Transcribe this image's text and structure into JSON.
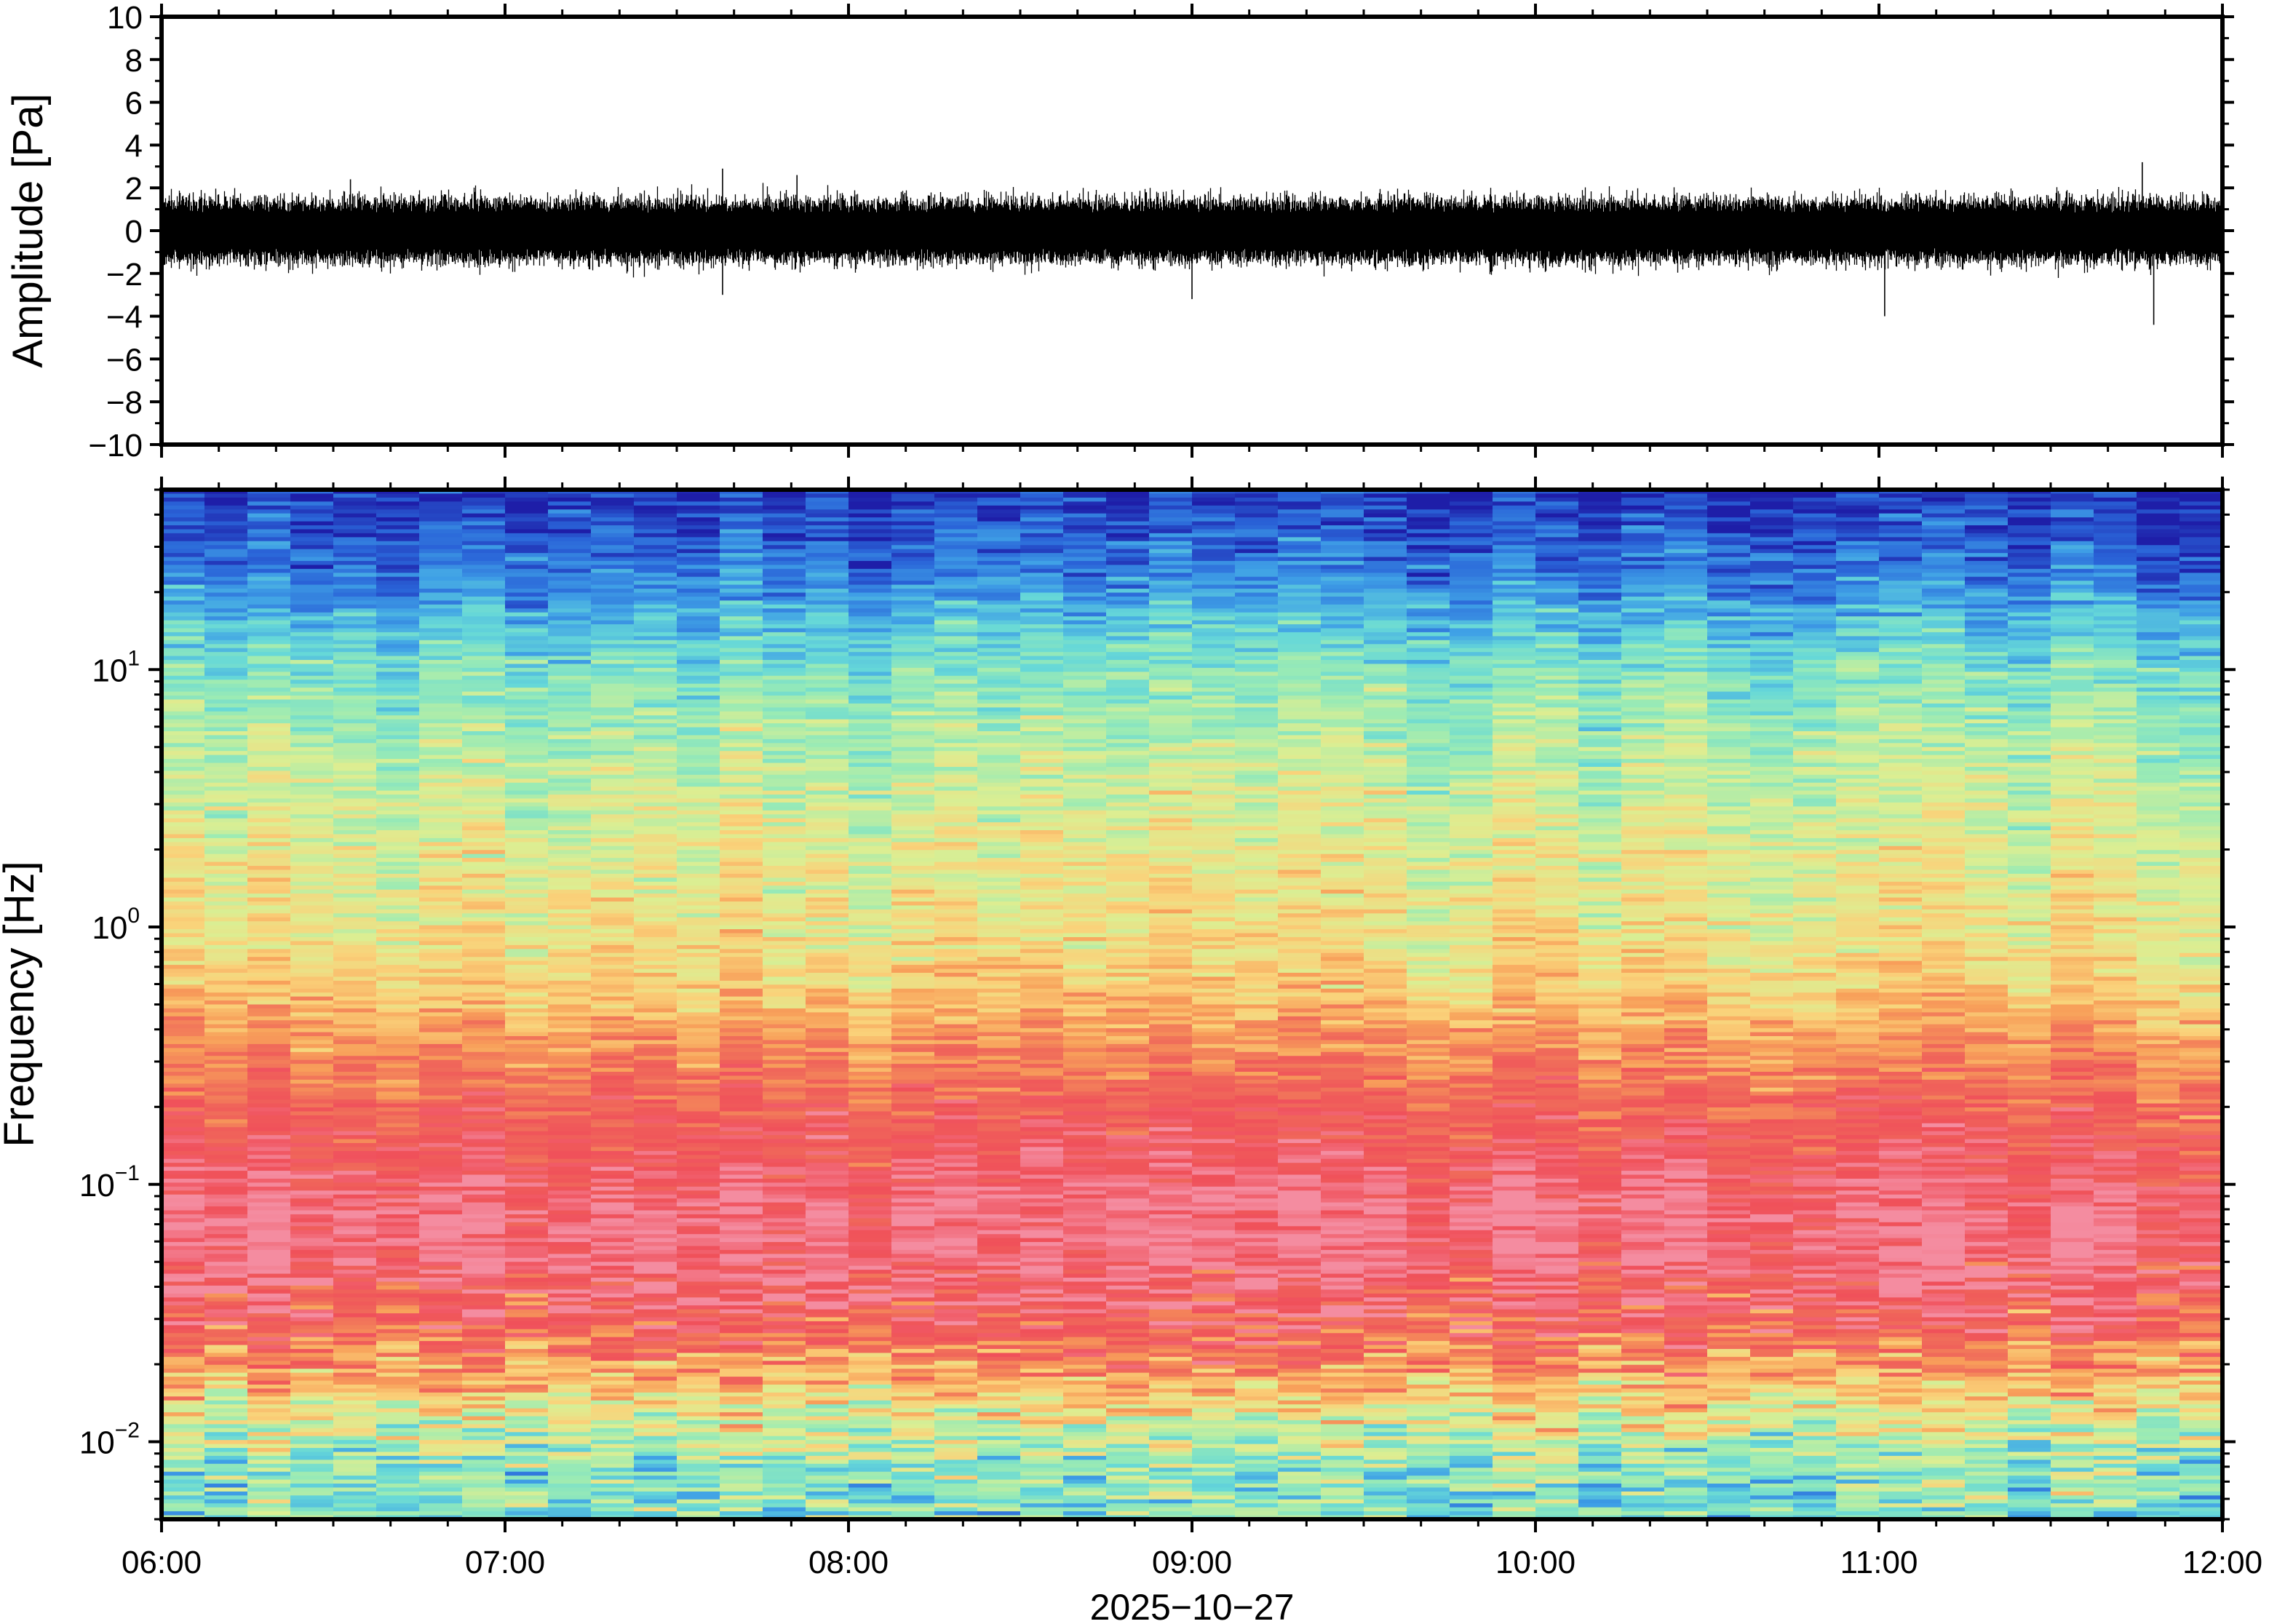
{
  "chart_data": [
    {
      "type": "line",
      "ylabel": "Amplitude [Pa]",
      "ylim": [
        -10,
        10
      ],
      "yticks": [
        10,
        8,
        6,
        4,
        2,
        0,
        -2,
        -4,
        -6,
        -8,
        -10
      ],
      "yticklabels": [
        "10",
        "8",
        "6",
        "4",
        "2",
        "0",
        "−2",
        "−4",
        "−6",
        "−8",
        "−10"
      ],
      "x_range": [
        "06:00",
        "12:00"
      ],
      "series": [
        {
          "baseline_amplitude_Pa": [
            -1.5,
            1.5
          ],
          "notable_peaks": [
            {
              "time": "06:33",
              "value": 2.4
            },
            {
              "time": "07:38",
              "value": 2.9
            },
            {
              "time": "07:38",
              "value": -3.0
            },
            {
              "time": "07:51",
              "value": 2.6
            },
            {
              "time": "09:00",
              "value": -3.2
            },
            {
              "time": "11:01",
              "value": -4.0
            },
            {
              "time": "11:46",
              "value": 3.2
            },
            {
              "time": "11:48",
              "value": -4.4
            }
          ]
        }
      ],
      "color": "#000000"
    },
    {
      "type": "heatmap",
      "ylabel": "Frequency [Hz]",
      "yscale": "log",
      "ylim": [
        0.005,
        50
      ],
      "yticks": [
        0.01,
        0.1,
        1,
        10
      ],
      "ytick_labels": [
        {
          "base": "10",
          "exp": "−2"
        },
        {
          "base": "10",
          "exp": "−1"
        },
        {
          "base": "10",
          "exp": "0"
        },
        {
          "base": "10",
          "exp": "1"
        }
      ],
      "xticks": [
        "06:00",
        "07:00",
        "08:00",
        "09:00",
        "10:00",
        "11:00",
        "12:00"
      ],
      "xlabel": "2025−10−27",
      "time_bins": 48,
      "colormap": [
        "#1e1ea8",
        "#2a64d8",
        "#3fa0e6",
        "#66d8d8",
        "#9bebb4",
        "#dcee92",
        "#fad27a",
        "#f8a05a",
        "#f06a5a",
        "#f0505a",
        "#f48ca0"
      ],
      "level_profile_by_frequency_Hz": [
        {
          "freq": 0.005,
          "level": 0.34
        },
        {
          "freq": 0.008,
          "level": 0.38
        },
        {
          "freq": 0.012,
          "level": 0.5
        },
        {
          "freq": 0.02,
          "level": 0.72
        },
        {
          "freq": 0.03,
          "level": 0.87
        },
        {
          "freq": 0.05,
          "level": 0.95
        },
        {
          "freq": 0.08,
          "level": 0.96
        },
        {
          "freq": 0.12,
          "level": 0.9
        },
        {
          "freq": 0.2,
          "level": 0.83
        },
        {
          "freq": 0.35,
          "level": 0.72
        },
        {
          "freq": 0.6,
          "level": 0.6
        },
        {
          "freq": 1,
          "level": 0.55
        },
        {
          "freq": 2,
          "level": 0.52
        },
        {
          "freq": 4,
          "level": 0.46
        },
        {
          "freq": 7,
          "level": 0.4
        },
        {
          "freq": 10,
          "level": 0.35
        },
        {
          "freq": 15,
          "level": 0.26
        },
        {
          "freq": 20,
          "level": 0.18
        },
        {
          "freq": 30,
          "level": 0.1
        },
        {
          "freq": 50,
          "level": 0.03
        }
      ]
    }
  ]
}
